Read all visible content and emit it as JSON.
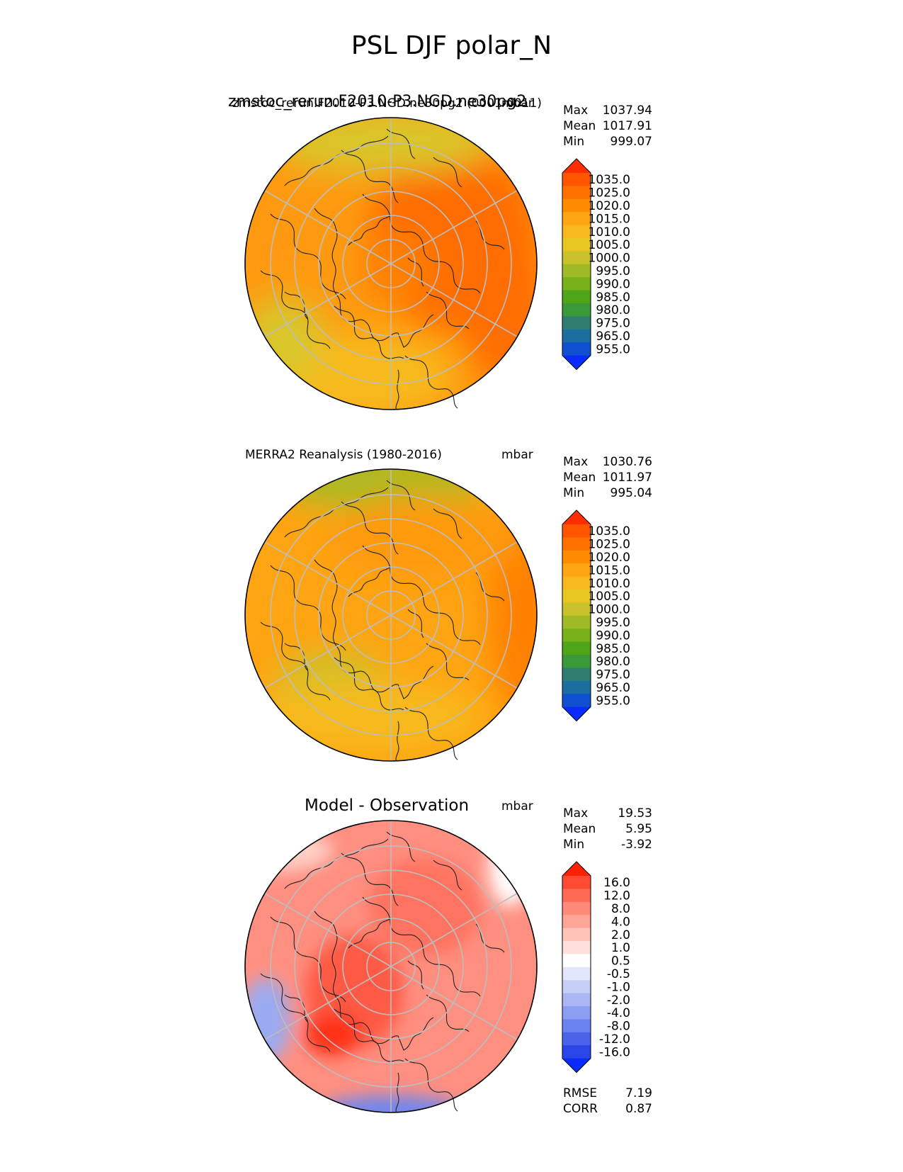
{
  "title": "PSL DJF polar_N",
  "panels": [
    {
      "title_big": "zmstoc_rerun.F2010-P3.NGD.ne30pg2",
      "title_small": "zmstoc_rerun.F2010-P3.NGD.ne30pg2 (0001-0011)",
      "units": "mbar",
      "stats": [
        {
          "label": "Max",
          "value": "1037.94"
        },
        {
          "label": "Mean",
          "value": "1017.91"
        },
        {
          "label": "Min",
          "value": "999.07"
        }
      ],
      "colorbar_labels": [
        "1035.0",
        "1025.0",
        "1020.0",
        "1015.0",
        "1010.0",
        "1005.0",
        "1000.0",
        "995.0",
        "990.0",
        "985.0",
        "980.0",
        "975.0",
        "965.0",
        "955.0"
      ]
    },
    {
      "title": "MERRA2 Reanalysis (1980-2016)",
      "units": "mbar",
      "stats": [
        {
          "label": "Max",
          "value": "1030.76"
        },
        {
          "label": "Mean",
          "value": "1011.97"
        },
        {
          "label": "Min",
          "value": "995.04"
        }
      ],
      "colorbar_labels": [
        "1035.0",
        "1025.0",
        "1020.0",
        "1015.0",
        "1010.0",
        "1005.0",
        "1000.0",
        "995.0",
        "990.0",
        "985.0",
        "980.0",
        "975.0",
        "965.0",
        "955.0"
      ]
    },
    {
      "title": "Model - Observation",
      "units": "mbar",
      "stats": [
        {
          "label": "Max",
          "value": "19.53"
        },
        {
          "label": "Mean",
          "value": "5.95"
        },
        {
          "label": "Min",
          "value": "-3.92"
        }
      ],
      "colorbar_labels": [
        "16.0",
        "12.0",
        "8.0",
        "4.0",
        "2.0",
        "1.0",
        "0.5",
        "-0.5",
        "-1.0",
        "-2.0",
        "-4.0",
        "-8.0",
        "-12.0",
        "-16.0"
      ],
      "metrics": [
        {
          "label": "RMSE",
          "value": "7.19"
        },
        {
          "label": "CORR",
          "value": "0.87"
        }
      ]
    }
  ],
  "colors": {
    "psl_scale": [
      "#ff2d00",
      "#ff5500",
      "#ff7200",
      "#ff8c00",
      "#ffa412",
      "#f6b81e",
      "#e8c723",
      "#c9c22a",
      "#9fba25",
      "#78b11a",
      "#4fa518",
      "#3a9a3a",
      "#2f7f70",
      "#1a6fa0",
      "#1050d0",
      "#0a2bff"
    ],
    "diff_scale": [
      "#ff2200",
      "#ff4a33",
      "#ff6a55",
      "#ff8a78",
      "#ffa597",
      "#ffc3b8",
      "#ffe0da",
      "#ffffff",
      "#e1e6fb",
      "#c6cff8",
      "#aab7f4",
      "#8c9ef1",
      "#6c82ee",
      "#4a63ea",
      "#2a45e8",
      "#0a2bff"
    ],
    "model_shading": [
      "#ff8000",
      "#ff6d00",
      "#ff9a10",
      "#f7ba1d",
      "#d9c62a"
    ],
    "obs_shading": [
      "#ff8000",
      "#ff9a10",
      "#ffa412",
      "#f7ba1d",
      "#c9c22a",
      "#a9ba24"
    ],
    "diff_shading": [
      "#ff8f80",
      "#ff7361",
      "#ff5a44",
      "#ff3314",
      "#ffd0c8",
      "#9aaaf2",
      "#6f86f0"
    ]
  }
}
